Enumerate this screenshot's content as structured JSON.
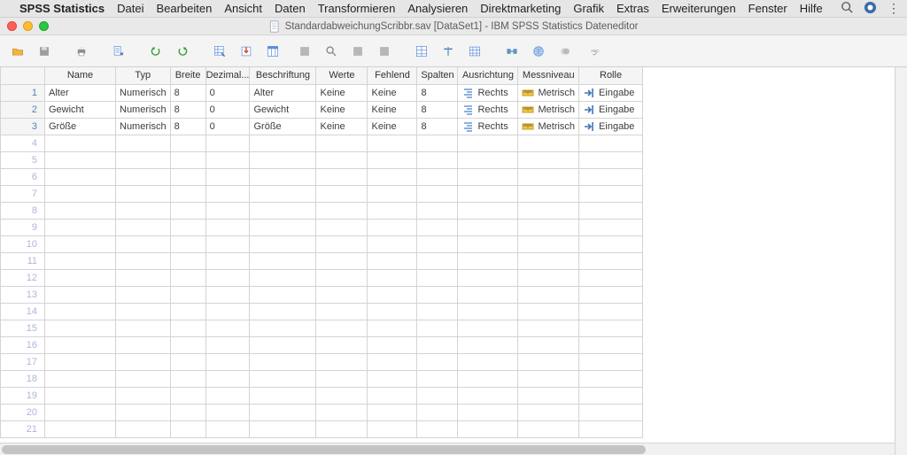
{
  "mac_menu": {
    "app_name": "SPSS Statistics",
    "items": [
      "Datei",
      "Bearbeiten",
      "Ansicht",
      "Daten",
      "Transformieren",
      "Analysieren",
      "Direktmarketing",
      "Grafik",
      "Extras",
      "Erweiterungen",
      "Fenster",
      "Hilfe"
    ]
  },
  "window": {
    "title": "StandardabweichungScribbr.sav [DataSet1] - IBM SPSS Statistics Dateneditor"
  },
  "toolbar_icons": [
    "open-file-icon",
    "save-icon",
    "print-icon",
    "data-doc-icon",
    "undo-icon",
    "redo-icon",
    "grid-insert-icon",
    "import-icon",
    "variables-icon",
    "select-cases-icon",
    "find-icon",
    "chart-icon",
    "weight-icon",
    "data-table-icon",
    "scales-icon",
    "spreadsheet-icon",
    "split-icon",
    "globe-icon",
    "venn-icon",
    "abc-icon"
  ],
  "columns": [
    {
      "key": "name",
      "label": "Name"
    },
    {
      "key": "typ",
      "label": "Typ"
    },
    {
      "key": "breite",
      "label": "Breite"
    },
    {
      "key": "dezimal",
      "label": "Dezimal..."
    },
    {
      "key": "beschriftung",
      "label": "Beschriftung"
    },
    {
      "key": "werte",
      "label": "Werte"
    },
    {
      "key": "fehlend",
      "label": "Fehlend"
    },
    {
      "key": "spalten",
      "label": "Spalten"
    },
    {
      "key": "ausrichtung",
      "label": "Ausrichtung"
    },
    {
      "key": "messniveau",
      "label": "Messniveau"
    },
    {
      "key": "rolle",
      "label": "Rolle"
    }
  ],
  "rows": [
    {
      "name": "Alter",
      "typ": "Numerisch",
      "breite": "8",
      "dezimal": "0",
      "beschriftung": "Alter",
      "werte": "Keine",
      "fehlend": "Keine",
      "spalten": "8",
      "ausrichtung": "Rechts",
      "messniveau": "Metrisch",
      "rolle": "Eingabe"
    },
    {
      "name": "Gewicht",
      "typ": "Numerisch",
      "breite": "8",
      "dezimal": "0",
      "beschriftung": "Gewicht",
      "werte": "Keine",
      "fehlend": "Keine",
      "spalten": "8",
      "ausrichtung": "Rechts",
      "messniveau": "Metrisch",
      "rolle": "Eingabe"
    },
    {
      "name": "Größe",
      "typ": "Numerisch",
      "breite": "8",
      "dezimal": "0",
      "beschriftung": "Größe",
      "werte": "Keine",
      "fehlend": "Keine",
      "spalten": "8",
      "ausrichtung": "Rechts",
      "messniveau": "Metrisch",
      "rolle": "Eingabe"
    }
  ],
  "empty_row_count": 18,
  "colors": {
    "menubar_bg": "#e6e6e6",
    "toolbar_bg": "#f4f4f4",
    "grid_border": "#d4d4d4",
    "header_bg": "#f5f5f5",
    "rownum_blue": "#5a7db6",
    "text": "#3c3c3c"
  }
}
